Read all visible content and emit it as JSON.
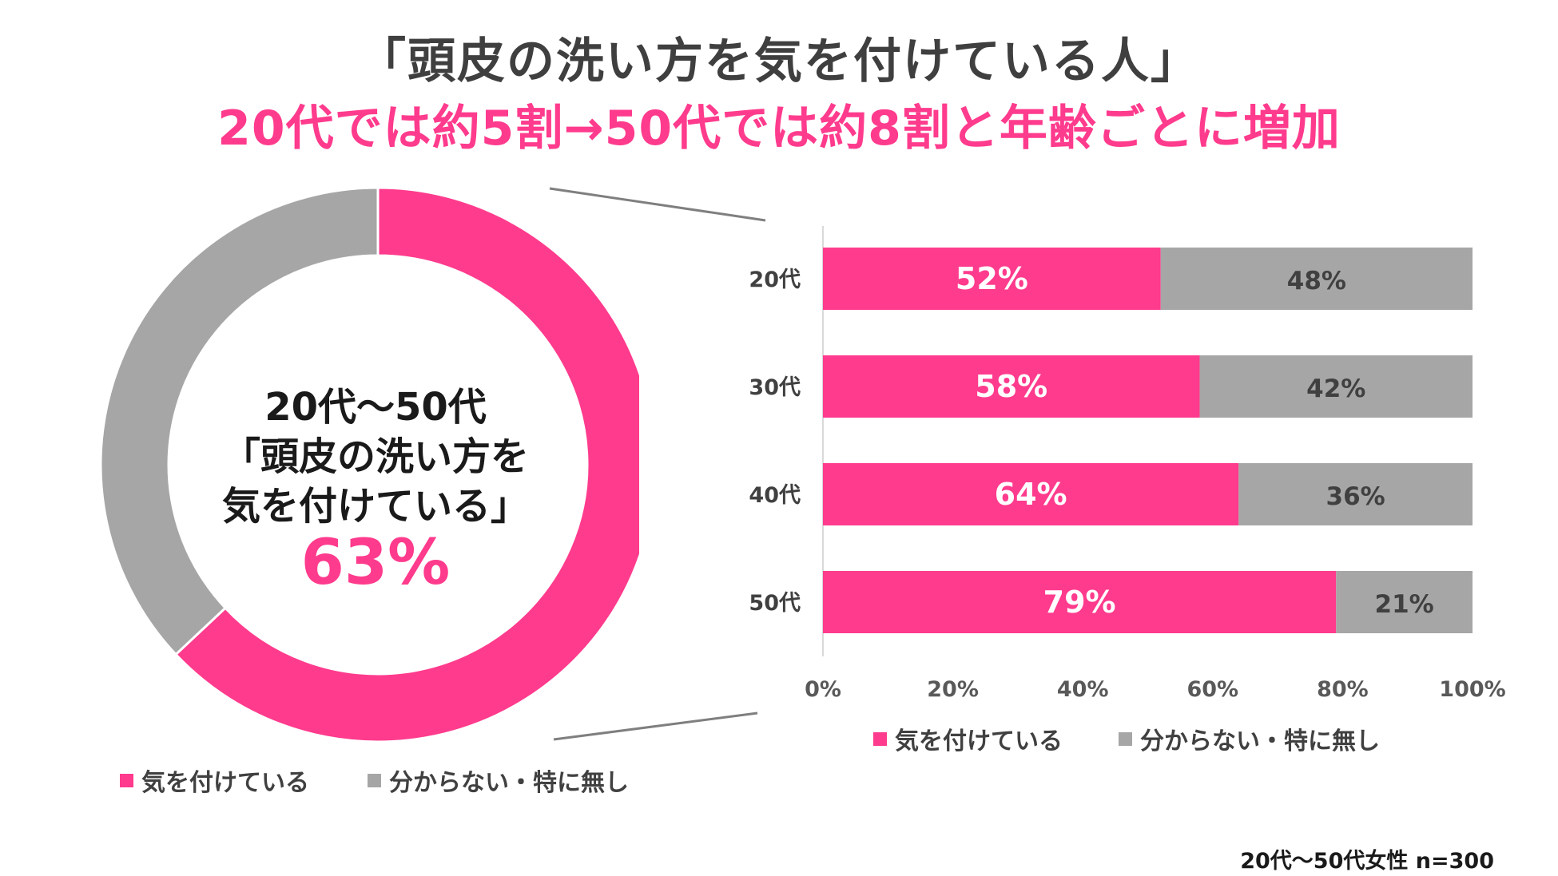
{
  "title": {
    "line1": "「頭皮の洗い方を気を付けている人」",
    "line2": "20代では約5割→50代では約8割と年齢ごとに増加"
  },
  "colors": {
    "pink": "#ff3b8d",
    "gray": "#a6a6a6",
    "title_gray": "#3f3f3f"
  },
  "donut": {
    "center_line1": "20代～50代",
    "center_line2": "「頭皮の洗い方を",
    "center_line3": "気を付けている」",
    "center_value": "63%",
    "legend": [
      "気を付けている",
      "分からない・特に無し"
    ]
  },
  "bar": {
    "legend": [
      "気を付けている",
      "分からない・特に無し"
    ]
  },
  "footnote": "20代～50代女性 n=300",
  "chart_data": [
    {
      "type": "pie",
      "variant": "donut",
      "labels": [
        "気を付けている",
        "分からない・特に無し"
      ],
      "values": [
        63,
        37
      ],
      "center_label": "63%"
    },
    {
      "type": "bar",
      "orientation": "horizontal",
      "stacked": true,
      "percent": true,
      "categories": [
        "20代",
        "30代",
        "40代",
        "50代"
      ],
      "series": [
        {
          "name": "気を付けている",
          "values": [
            52,
            58,
            64,
            79
          ],
          "labels": [
            "52%",
            "58%",
            "64%",
            "79%"
          ]
        },
        {
          "name": "分からない・特に無し",
          "values": [
            48,
            42,
            36,
            21
          ],
          "labels": [
            "48%",
            "42%",
            "36%",
            "21%"
          ]
        }
      ],
      "xlim": [
        0,
        100
      ],
      "xticks": [
        "0%",
        "20%",
        "40%",
        "60%",
        "80%",
        "100%"
      ],
      "legend_position": "bottom"
    }
  ]
}
